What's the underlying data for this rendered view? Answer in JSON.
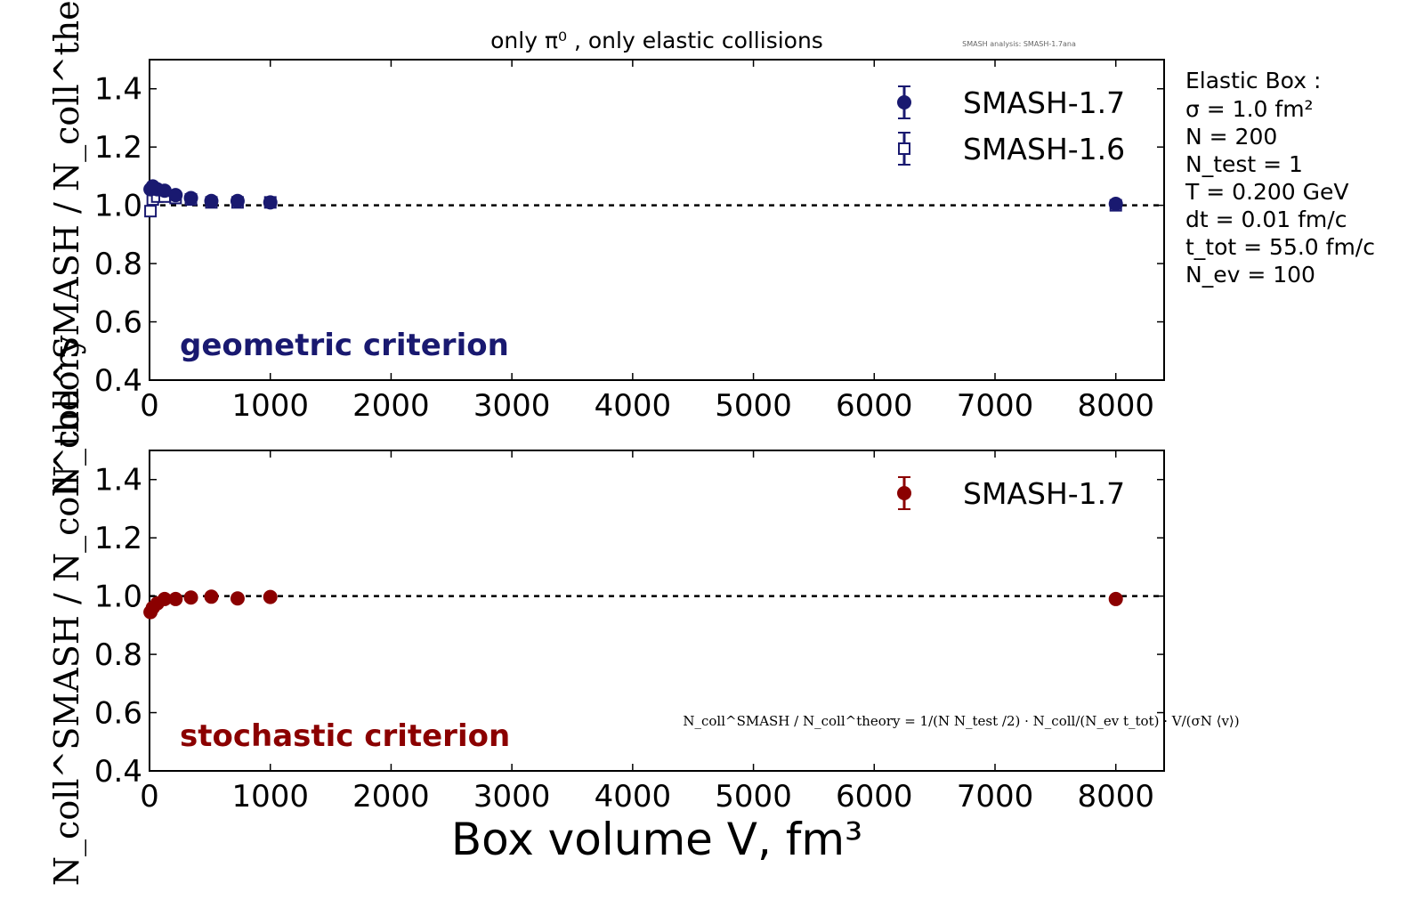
{
  "watermark": "SMASH analysis: SMASH-1.7ana",
  "chart_data": [
    {
      "type": "scatter",
      "title": "only π⁰ , only elastic collisions",
      "ylabel": "N_coll^SMASH / N_coll^theory",
      "xlim": [
        0,
        8400
      ],
      "ylim": [
        0.4,
        1.5
      ],
      "xticks": [
        "0",
        "1000",
        "2000",
        "3000",
        "4000",
        "5000",
        "6000",
        "7000",
        "8000"
      ],
      "yticks": [
        "0.4",
        "0.6",
        "0.8",
        "1.0",
        "1.2",
        "1.4"
      ],
      "annotation": "geometric criterion",
      "reference_line": 1.0,
      "legend_position": "top-right",
      "x": [
        8,
        27,
        64,
        125,
        216,
        343,
        512,
        729,
        1000,
        8000
      ],
      "series": [
        {
          "name": "SMASH-1.7",
          "marker": "filled-circle",
          "color": "#191970",
          "values": [
            1.055,
            1.065,
            1.055,
            1.05,
            1.035,
            1.025,
            1.015,
            1.015,
            1.01,
            1.005
          ]
        },
        {
          "name": "SMASH-1.6",
          "marker": "open-square",
          "color": "#191970",
          "values": [
            0.98,
            1.02,
            1.03,
            1.03,
            1.025,
            1.02,
            1.01,
            1.01,
            1.01,
            1.0
          ]
        }
      ]
    },
    {
      "type": "scatter",
      "ylabel": "N_coll^SMASH / N_coll^theory",
      "xlabel": "Box volume V, fm³",
      "xlim": [
        0,
        8400
      ],
      "ylim": [
        0.4,
        1.5
      ],
      "xticks": [
        "0",
        "1000",
        "2000",
        "3000",
        "4000",
        "5000",
        "6000",
        "7000",
        "8000"
      ],
      "yticks": [
        "0.4",
        "0.6",
        "0.8",
        "1.0",
        "1.2",
        "1.4"
      ],
      "annotation": "stochastic criterion",
      "reference_line": 1.0,
      "legend_position": "top-right",
      "x": [
        8,
        27,
        64,
        125,
        216,
        343,
        512,
        729,
        1000,
        8000
      ],
      "series": [
        {
          "name": "SMASH-1.7",
          "marker": "filled-circle",
          "color": "#8b0000",
          "values": [
            0.945,
            0.96,
            0.975,
            0.99,
            0.99,
            0.995,
            0.998,
            0.992,
            0.997,
            0.99
          ]
        }
      ]
    }
  ],
  "params": {
    "title": "Elastic Box :",
    "lines": [
      "σ = 1.0 fm²",
      "N = 200",
      "N_test = 1",
      "T = 0.200 GeV",
      "dt = 0.01 fm/c",
      "t_tot = 55.0 fm/c",
      "N_ev = 100"
    ]
  },
  "formula": "N_coll^SMASH / N_coll^theory = 1/(N N_test /2) · N_coll/(N_ev t_tot) · V/(σN ⟨v⟩)"
}
